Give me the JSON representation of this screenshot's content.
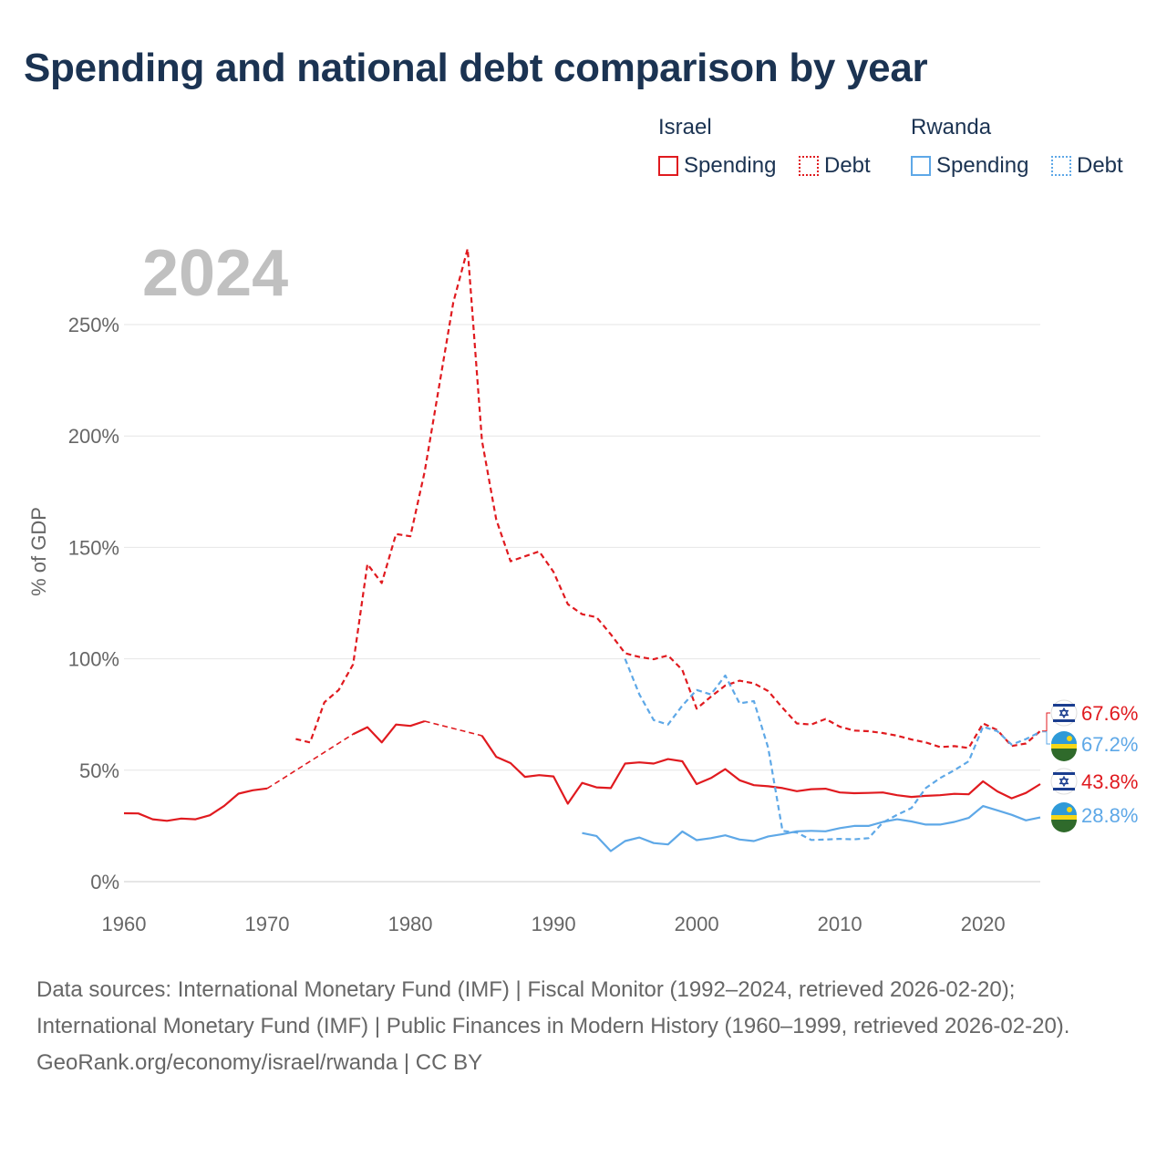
{
  "title": "Spending and national debt comparison by year",
  "legend": {
    "israel_label": "Israel",
    "rwanda_label": "Rwanda",
    "spending_label": "Spending",
    "debt_label": "Debt"
  },
  "colors": {
    "israel": "#e01a1f",
    "rwanda": "#5ea8e7",
    "grid": "#e6e6e6",
    "year": "#c0c0c0"
  },
  "chart_data": {
    "type": "line",
    "title": "Spending and national debt comparison by year",
    "year_label": "2024",
    "ylabel": "% of GDP",
    "xlabel": "",
    "xlim": [
      1960,
      2024
    ],
    "ylim": [
      0,
      285
    ],
    "x_ticks": [
      "1960",
      "1970",
      "1980",
      "1990",
      "2000",
      "2010",
      "2020"
    ],
    "x_tick_values": [
      1960,
      1970,
      1980,
      1990,
      2000,
      2010,
      2020
    ],
    "y_ticks": [
      "0%",
      "50%",
      "100%",
      "150%",
      "200%",
      "250%"
    ],
    "y_tick_values": [
      0,
      50,
      100,
      150,
      200,
      250
    ],
    "series": [
      {
        "name": "Israel Spending",
        "country": "Israel",
        "kind": "spending",
        "color": "#e01a1f",
        "dashed": false,
        "points": [
          [
            1960,
            30.7
          ],
          [
            1961,
            30.6
          ],
          [
            1962,
            28.0
          ],
          [
            1963,
            27.3
          ],
          [
            1964,
            28.3
          ],
          [
            1965,
            28.0
          ],
          [
            1966,
            29.8
          ],
          [
            1967,
            34.0
          ],
          [
            1968,
            39.5
          ],
          [
            1969,
            41.0
          ],
          [
            1970,
            41.8
          ],
          [
            1971,
            null
          ],
          [
            1972,
            null
          ],
          [
            1973,
            null
          ],
          [
            1974,
            null
          ],
          [
            1975,
            null
          ],
          [
            1976,
            66.2
          ],
          [
            1977,
            69.3
          ],
          [
            1978,
            62.5
          ],
          [
            1979,
            70.5
          ],
          [
            1980,
            69.9
          ],
          [
            1981,
            72.0
          ],
          [
            1982,
            null
          ],
          [
            1983,
            null
          ],
          [
            1984,
            null
          ],
          [
            1985,
            65.5
          ],
          [
            1986,
            56.0
          ],
          [
            1987,
            53.2
          ],
          [
            1988,
            47.0
          ],
          [
            1989,
            47.8
          ],
          [
            1990,
            47.2
          ],
          [
            1991,
            35.0
          ],
          [
            1992,
            44.3
          ],
          [
            1993,
            42.3
          ],
          [
            1994,
            42.0
          ],
          [
            1995,
            53.0
          ],
          [
            1996,
            53.5
          ],
          [
            1997,
            53.0
          ],
          [
            1998,
            55.0
          ],
          [
            1999,
            54.0
          ],
          [
            2000,
            43.8
          ],
          [
            2001,
            46.5
          ],
          [
            2002,
            50.5
          ],
          [
            2003,
            45.5
          ],
          [
            2004,
            43.3
          ],
          [
            2005,
            42.8
          ],
          [
            2006,
            42.0
          ],
          [
            2007,
            40.6
          ],
          [
            2008,
            41.5
          ],
          [
            2009,
            41.7
          ],
          [
            2010,
            40.0
          ],
          [
            2011,
            39.7
          ],
          [
            2012,
            39.8
          ],
          [
            2013,
            40.0
          ],
          [
            2014,
            38.8
          ],
          [
            2015,
            38.0
          ],
          [
            2016,
            38.5
          ],
          [
            2017,
            38.8
          ],
          [
            2018,
            39.4
          ],
          [
            2019,
            39.2
          ],
          [
            2020,
            45.0
          ],
          [
            2021,
            40.5
          ],
          [
            2022,
            37.4
          ],
          [
            2023,
            39.8
          ],
          [
            2024,
            43.8
          ]
        ]
      },
      {
        "name": "Israel Debt",
        "country": "Israel",
        "kind": "debt",
        "color": "#e01a1f",
        "dashed": true,
        "points": [
          [
            1972,
            64.0
          ],
          [
            1973,
            62.5
          ],
          [
            1974,
            80.5
          ],
          [
            1975,
            86.0
          ],
          [
            1976,
            97.5
          ],
          [
            1977,
            142.5
          ],
          [
            1978,
            134.0
          ],
          [
            1979,
            156.0
          ],
          [
            1980,
            155.0
          ],
          [
            1981,
            184.0
          ],
          [
            1982,
            222.0
          ],
          [
            1983,
            260.0
          ],
          [
            1984,
            284.0
          ],
          [
            1985,
            198.0
          ],
          [
            1986,
            162.5
          ],
          [
            1987,
            143.8
          ],
          [
            1988,
            146.0
          ],
          [
            1989,
            148.2
          ],
          [
            1990,
            139.0
          ],
          [
            1991,
            124.5
          ],
          [
            1992,
            120.0
          ],
          [
            1993,
            118.7
          ],
          [
            1994,
            111.0
          ],
          [
            1995,
            102.5
          ],
          [
            1996,
            100.8
          ],
          [
            1997,
            99.8
          ],
          [
            1998,
            101.5
          ],
          [
            1999,
            95.0
          ],
          [
            2000,
            77.6
          ],
          [
            2001,
            83.0
          ],
          [
            2002,
            88.0
          ],
          [
            2003,
            90.2
          ],
          [
            2004,
            89.0
          ],
          [
            2005,
            85.5
          ],
          [
            2006,
            78.0
          ],
          [
            2007,
            71.0
          ],
          [
            2008,
            70.5
          ],
          [
            2009,
            73.0
          ],
          [
            2010,
            69.5
          ],
          [
            2011,
            67.8
          ],
          [
            2012,
            67.5
          ],
          [
            2013,
            66.7
          ],
          [
            2014,
            65.5
          ],
          [
            2015,
            63.8
          ],
          [
            2016,
            62.5
          ],
          [
            2017,
            60.4
          ],
          [
            2018,
            60.8
          ],
          [
            2019,
            60.0
          ],
          [
            2020,
            71.0
          ],
          [
            2021,
            68.0
          ],
          [
            2022,
            60.9
          ],
          [
            2023,
            62.0
          ],
          [
            2024,
            67.6
          ]
        ]
      },
      {
        "name": "Rwanda Spending",
        "country": "Rwanda",
        "kind": "spending",
        "color": "#5ea8e7",
        "dashed": false,
        "points": [
          [
            1992,
            21.8
          ],
          [
            1993,
            20.5
          ],
          [
            1994,
            13.7
          ],
          [
            1995,
            18.2
          ],
          [
            1996,
            19.8
          ],
          [
            1997,
            17.3
          ],
          [
            1998,
            16.7
          ],
          [
            1999,
            22.5
          ],
          [
            2000,
            18.6
          ],
          [
            2001,
            19.5
          ],
          [
            2002,
            20.8
          ],
          [
            2003,
            18.9
          ],
          [
            2004,
            18.2
          ],
          [
            2005,
            20.3
          ],
          [
            2006,
            21.3
          ],
          [
            2007,
            22.6
          ],
          [
            2008,
            22.8
          ],
          [
            2009,
            22.6
          ],
          [
            2010,
            24.0
          ],
          [
            2011,
            25.0
          ],
          [
            2012,
            25.0
          ],
          [
            2013,
            26.8
          ],
          [
            2014,
            28.0
          ],
          [
            2015,
            27.0
          ],
          [
            2016,
            25.6
          ],
          [
            2017,
            25.6
          ],
          [
            2018,
            26.8
          ],
          [
            2019,
            28.6
          ],
          [
            2020,
            33.9
          ],
          [
            2021,
            32.0
          ],
          [
            2022,
            30.0
          ],
          [
            2023,
            27.5
          ],
          [
            2024,
            28.8
          ]
        ]
      },
      {
        "name": "Rwanda Debt",
        "country": "Rwanda",
        "kind": "debt",
        "color": "#5ea8e7",
        "dashed": true,
        "points": [
          [
            1995,
            100.0
          ],
          [
            1996,
            84.0
          ],
          [
            1997,
            72.5
          ],
          [
            1998,
            70.5
          ],
          [
            1999,
            79.0
          ],
          [
            2000,
            86.0
          ],
          [
            2001,
            84.0
          ],
          [
            2002,
            92.5
          ],
          [
            2003,
            80.0
          ],
          [
            2004,
            81.0
          ],
          [
            2005,
            60.0
          ],
          [
            2006,
            22.8
          ],
          [
            2007,
            22.0
          ],
          [
            2008,
            18.7
          ],
          [
            2009,
            18.9
          ],
          [
            2010,
            19.2
          ],
          [
            2011,
            19.0
          ],
          [
            2012,
            19.5
          ],
          [
            2013,
            26.5
          ],
          [
            2014,
            30.0
          ],
          [
            2015,
            33.0
          ],
          [
            2016,
            42.0
          ],
          [
            2017,
            46.5
          ],
          [
            2018,
            50.0
          ],
          [
            2019,
            54.0
          ],
          [
            2020,
            69.5
          ],
          [
            2021,
            67.5
          ],
          [
            2022,
            61.5
          ],
          [
            2023,
            64.0
          ],
          [
            2024,
            67.2
          ]
        ]
      }
    ],
    "end_labels": [
      {
        "series": "Israel Debt",
        "text": "67.6%",
        "color": "#e01a1f",
        "flag": "israel-flag"
      },
      {
        "series": "Rwanda Debt",
        "text": "67.2%",
        "color": "#5ea8e7",
        "flag": "rwanda-flag"
      },
      {
        "series": "Israel Spending",
        "text": "43.8%",
        "color": "#e01a1f",
        "flag": "israel-flag"
      },
      {
        "series": "Rwanda Spending",
        "text": "28.8%",
        "color": "#5ea8e7",
        "flag": "rwanda-flag"
      }
    ]
  },
  "footer": {
    "sources": "Data sources: International Monetary Fund (IMF) | Fiscal Monitor (1992–2024, retrieved 2026-02-20); International Monetary Fund (IMF) | Public Finances in Modern History (1960–1999, retrieved 2026-02-20).",
    "credit": "GeoRank.org/economy/israel/rwanda | CC BY"
  }
}
